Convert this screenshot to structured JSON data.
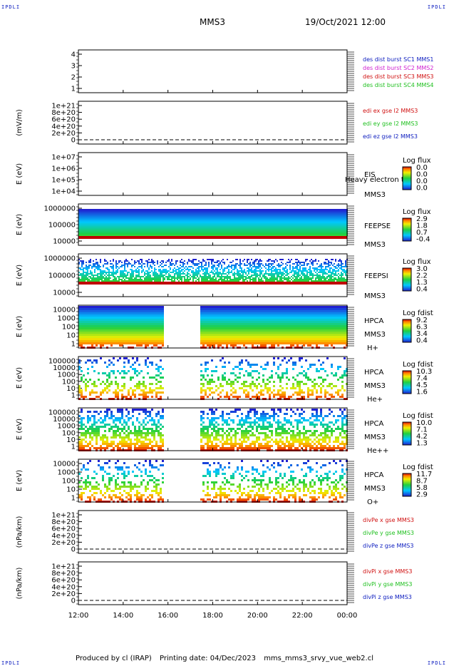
{
  "corners": {
    "tl": "IPDLI",
    "tr": "IPDLI",
    "bl": "IPDLI",
    "br": "IPDLI"
  },
  "header": {
    "title": "MMS3",
    "datetime": "19/Oct/2021 12:00"
  },
  "footer": {
    "produced": "Produced by cl (IRAP)",
    "printing": "Printing date: 04/Dec/2023",
    "script": "mms_mms3_srvy_vue_web2.cl"
  },
  "colors": {
    "red": "#d01010",
    "green": "#20c020",
    "blue": "#1020c0",
    "magenta": "#d020d0"
  },
  "chart_data": {
    "type": "heatmap",
    "x_ticks": [
      "12:00",
      "14:00",
      "16:00",
      "18:00",
      "20:00",
      "22:00",
      "00:00"
    ],
    "panels": [
      {
        "id": "ion-dist",
        "kind": "lines",
        "ylabel": "",
        "yticks": [
          "4",
          "3",
          "2",
          "1"
        ],
        "legend": [
          {
            "text": "des dist burst SC1 MMS1",
            "color": "#1020c0"
          },
          {
            "text": "des dist burst SC2 MMS2",
            "color": "#d020d0"
          },
          {
            "text": "des dist burst SC3 MMS3",
            "color": "#d01010"
          },
          {
            "text": "des dist burst SC4 MMS4",
            "color": "#20c020"
          }
        ]
      },
      {
        "id": "edi",
        "kind": "lines",
        "ylabel": "(mV/m)",
        "yticks": [
          "1e+21",
          "8e+20",
          "6e+20",
          "4e+20",
          "2e+20",
          "0"
        ],
        "legend": [
          {
            "text": "edi ex gse l2 MMS3",
            "color": "#d01010"
          },
          {
            "text": "edi ey gse l2 MMS3",
            "color": "#20c020"
          },
          {
            "text": "edi ez gse l2 MMS3",
            "color": "#1020c0"
          }
        ]
      },
      {
        "id": "eis",
        "kind": "spectro",
        "ylabel": "E (eV)",
        "yticks": [
          "1e+07",
          "1e+06",
          "1e+05",
          "1e+04"
        ],
        "labels": [
          "EIS",
          "MMS3"
        ],
        "overlay": "Heavy electron to",
        "cbar_title": "Log flux",
        "cbar": [
          "0.0",
          "0.0",
          "0.0",
          "0.0"
        ]
      },
      {
        "id": "feepse",
        "kind": "spectro",
        "ylabel": "E (eV)",
        "yticks": [
          "1000000",
          "100000",
          "10000"
        ],
        "labels": [
          "FEEPSE",
          "MMS3"
        ],
        "cbar_title": "Log flux",
        "cbar": [
          "2.9",
          "1.8",
          "0.7",
          "-0.4"
        ]
      },
      {
        "id": "feepsi",
        "kind": "spectro",
        "ylabel": "E (eV)",
        "yticks": [
          "1000000",
          "100000",
          "10000"
        ],
        "labels": [
          "FEEPSI",
          "MMS3"
        ],
        "cbar_title": "Log flux",
        "cbar": [
          "3.0",
          "2.2",
          "1.3",
          "0.4"
        ]
      },
      {
        "id": "hpca-h",
        "kind": "spectro",
        "ylabel": "E (eV)",
        "yticks": [
          "10000",
          "1000",
          "100",
          "10",
          "1"
        ],
        "labels": [
          "HPCA",
          "MMS3",
          "H+"
        ],
        "cbar_title": "Log fdist",
        "cbar": [
          "9.2",
          "6.3",
          "3.4",
          "0.4"
        ]
      },
      {
        "id": "hpca-he",
        "kind": "spectro",
        "ylabel": "E (eV)",
        "yticks": [
          "100000",
          "10000",
          "1000",
          "100",
          "10",
          "1"
        ],
        "labels": [
          "HPCA",
          "MMS3",
          "He+"
        ],
        "cbar_title": "Log fdist",
        "cbar": [
          "10.3",
          "7.4",
          "4.5",
          "1.6"
        ]
      },
      {
        "id": "hpca-hepp",
        "kind": "spectro",
        "ylabel": "E (eV)",
        "yticks": [
          "100000",
          "10000",
          "1000",
          "100",
          "10",
          "1"
        ],
        "labels": [
          "HPCA",
          "MMS3",
          "He++"
        ],
        "cbar_title": "Log fdist",
        "cbar": [
          "10.0",
          "7.1",
          "4.2",
          "1.3"
        ]
      },
      {
        "id": "hpca-o",
        "kind": "spectro",
        "ylabel": "E (eV)",
        "yticks": [
          "10000",
          "1000",
          "100",
          "10",
          "1"
        ],
        "labels": [
          "HPCA",
          "MMS3",
          "O+"
        ],
        "cbar_title": "Log fdist",
        "cbar": [
          "11.7",
          "8.7",
          "5.8",
          "2.9"
        ]
      },
      {
        "id": "divpe",
        "kind": "lines",
        "ylabel": "(nPa/km)",
        "yticks": [
          "1e+21",
          "8e+20",
          "6e+20",
          "4e+20",
          "2e+20",
          "0"
        ],
        "legend": [
          {
            "text": "divPe x gse MMS3",
            "color": "#d01010"
          },
          {
            "text": "divPe y gse MMS3",
            "color": "#20c020"
          },
          {
            "text": "divPe z gse MMS3",
            "color": "#1020c0"
          }
        ]
      },
      {
        "id": "divpi",
        "kind": "lines",
        "ylabel": "(nPa/km)",
        "yticks": [
          "1e+21",
          "8e+20",
          "6e+20",
          "4e+20",
          "2e+20",
          "0"
        ],
        "legend": [
          {
            "text": "divPi x gse MMS3",
            "color": "#d01010"
          },
          {
            "text": "divPi y gse MMS3",
            "color": "#20c020"
          },
          {
            "text": "divPi z gse MMS3",
            "color": "#1020c0"
          }
        ]
      }
    ]
  }
}
